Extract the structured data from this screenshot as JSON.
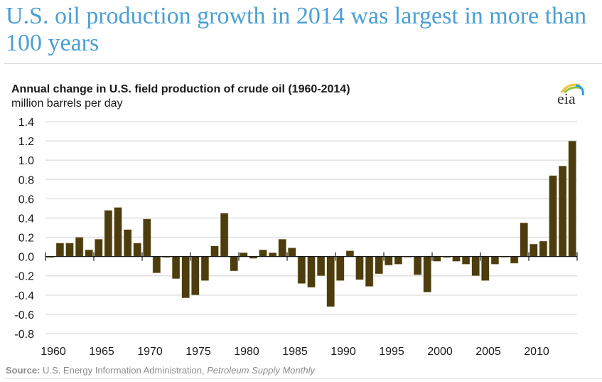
{
  "headline": "U.S. oil production growth in 2014 was largest in more than 100 years",
  "logo": {
    "icon": "eia-logo-icon",
    "text": "eia"
  },
  "source": {
    "label": "Source:",
    "text": " U.S. Energy Information Administration, ",
    "publication": "Petroleum Supply Monthly"
  },
  "colors": {
    "headline": "#4a9fd4",
    "bar": "#4d3d0e",
    "grid": "#e0e0e0",
    "axis": "#1a1a1a"
  },
  "chart_data": {
    "type": "bar",
    "title": "Annual change in U.S. field production of crude oil (1960-2014)",
    "subtitle": "million barrels  per day",
    "xlabel": "",
    "ylabel": "million barrels per day",
    "ylim": [
      -0.8,
      1.4
    ],
    "yticks": [
      1.4,
      1.2,
      1.0,
      0.8,
      0.6,
      0.4,
      0.2,
      0.0,
      -0.2,
      -0.4,
      -0.6,
      -0.8
    ],
    "ytick_labels": [
      "1.4",
      "1.2",
      "1.0",
      "0.8",
      "0.6",
      "0.4",
      "0.2",
      "0.0",
      "-0.2",
      "-0.4",
      "-0.6",
      "-0.8"
    ],
    "xtick_labels": [
      "1960",
      "1965",
      "1970",
      "1975",
      "1980",
      "1985",
      "1990",
      "1995",
      "2000",
      "2005",
      "2010"
    ],
    "grid": true,
    "legend": "none",
    "categories": [
      1960,
      1961,
      1962,
      1963,
      1964,
      1965,
      1966,
      1967,
      1968,
      1969,
      1970,
      1971,
      1972,
      1973,
      1974,
      1975,
      1976,
      1977,
      1978,
      1979,
      1980,
      1981,
      1982,
      1983,
      1984,
      1985,
      1986,
      1987,
      1988,
      1989,
      1990,
      1991,
      1992,
      1993,
      1994,
      1995,
      1996,
      1997,
      1998,
      1999,
      2000,
      2001,
      2002,
      2003,
      2004,
      2005,
      2006,
      2007,
      2008,
      2009,
      2010,
      2011,
      2012,
      2013,
      2014
    ],
    "values": [
      -0.01,
      0.14,
      0.14,
      0.2,
      0.07,
      0.18,
      0.48,
      0.51,
      0.28,
      0.14,
      0.39,
      -0.17,
      -0.01,
      -0.23,
      -0.43,
      -0.4,
      -0.25,
      0.11,
      0.45,
      -0.15,
      0.04,
      -0.02,
      0.07,
      0.04,
      0.18,
      0.09,
      -0.28,
      -0.32,
      -0.2,
      -0.52,
      -0.25,
      0.06,
      -0.24,
      -0.31,
      -0.18,
      -0.09,
      -0.08,
      0.0,
      -0.19,
      -0.37,
      -0.05,
      -0.01,
      -0.05,
      -0.08,
      -0.2,
      -0.25,
      -0.08,
      0.0,
      -0.07,
      0.35,
      0.13,
      0.16,
      0.84,
      0.94,
      1.2
    ]
  }
}
